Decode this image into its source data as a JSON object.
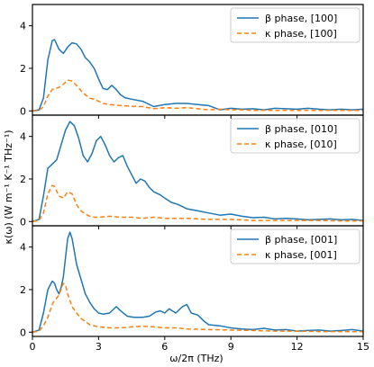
{
  "chart_data": {
    "type": "line",
    "xlabel": "ω/2π (THz)",
    "ylabel": "κ(ω) (W m⁻¹ K⁻¹ THz⁻¹)",
    "xlim": [
      0,
      15
    ],
    "ylim": [
      -0.2,
      5.0
    ],
    "xticks": [
      0,
      3,
      6,
      9,
      12,
      15
    ],
    "yticks": [
      0,
      2,
      4
    ],
    "grid": false,
    "shared_x": true,
    "colors": {
      "beta": "#1f77b4",
      "kappa": "#ff7f0e"
    },
    "panels": [
      {
        "legend_position": "upper-right",
        "series": [
          {
            "name": "β phase, [100]",
            "style": "solid",
            "x": [
              0,
              0.3,
              0.5,
              0.7,
              0.9,
              1.0,
              1.2,
              1.4,
              1.6,
              1.8,
              2.0,
              2.2,
              2.4,
              2.6,
              2.8,
              3.0,
              3.2,
              3.4,
              3.6,
              3.8,
              4.0,
              4.2,
              4.5,
              5.0,
              5.5,
              6.0,
              6.5,
              7.0,
              7.5,
              8.0,
              8.5,
              9.0,
              9.5,
              10.0,
              10.5,
              11.0,
              11.5,
              12.0,
              12.5,
              13.0,
              13.5,
              14.0,
              14.5,
              15.0
            ],
            "y": [
              0,
              0.05,
              0.6,
              2.4,
              3.3,
              3.35,
              2.9,
              2.7,
              3.0,
              3.2,
              3.15,
              2.9,
              2.5,
              2.3,
              2.0,
              1.5,
              1.05,
              1.0,
              1.2,
              1.0,
              0.75,
              0.62,
              0.55,
              0.45,
              0.2,
              0.3,
              0.35,
              0.35,
              0.3,
              0.25,
              0.05,
              0.12,
              0.08,
              0.1,
              0.05,
              0.12,
              0.1,
              0.08,
              0.12,
              0.08,
              0.05,
              0.08,
              0.05,
              0.08
            ]
          },
          {
            "name": "κ phase, [100]",
            "style": "dashed",
            "x": [
              0,
              0.3,
              0.5,
              0.7,
              0.9,
              1.0,
              1.2,
              1.4,
              1.6,
              1.8,
              2.0,
              2.2,
              2.4,
              2.6,
              2.8,
              3.0,
              3.2,
              3.5,
              4.0,
              4.5,
              5.0,
              5.5,
              6.0,
              6.5,
              7.0,
              7.5,
              8.0,
              8.5,
              9.0,
              9.5,
              10.0,
              10.5,
              11.0,
              11.5,
              12.0,
              12.5,
              13.0,
              13.5,
              14.0,
              14.5,
              15.0
            ],
            "y": [
              0,
              0.02,
              0.2,
              0.7,
              1.0,
              1.05,
              1.1,
              1.25,
              1.45,
              1.4,
              1.2,
              0.95,
              0.75,
              0.6,
              0.55,
              0.45,
              0.35,
              0.3,
              0.25,
              0.22,
              0.2,
              0.1,
              0.15,
              0.12,
              0.15,
              0.1,
              0.05,
              0.08,
              0.05,
              0.05,
              0.02,
              0.03,
              0.02,
              0.03,
              0.02,
              0.03,
              0.02,
              0.03,
              0.02,
              0.02,
              0.02
            ]
          }
        ]
      },
      {
        "legend_position": "upper-right",
        "series": [
          {
            "name": "β phase, [010]",
            "style": "solid",
            "x": [
              0,
              0.3,
              0.5,
              0.7,
              0.9,
              1.1,
              1.3,
              1.5,
              1.7,
              1.9,
              2.1,
              2.3,
              2.5,
              2.7,
              2.9,
              3.1,
              3.3,
              3.5,
              3.7,
              3.9,
              4.1,
              4.3,
              4.5,
              4.7,
              4.9,
              5.1,
              5.3,
              5.5,
              5.8,
              6.0,
              6.3,
              6.6,
              7.0,
              7.5,
              8.0,
              8.5,
              9.0,
              9.5,
              10.0,
              10.5,
              11.0,
              11.5,
              12.0,
              12.5,
              13.0,
              13.5,
              14.0,
              14.5,
              15.0
            ],
            "y": [
              0,
              0.1,
              1.2,
              2.5,
              2.7,
              2.9,
              3.6,
              4.3,
              4.7,
              4.5,
              3.9,
              3.1,
              2.8,
              3.2,
              3.8,
              4.0,
              3.6,
              3.1,
              2.8,
              3.0,
              3.1,
              2.6,
              2.2,
              1.8,
              2.0,
              1.9,
              1.6,
              1.4,
              1.25,
              1.1,
              0.9,
              0.8,
              0.6,
              0.5,
              0.4,
              0.3,
              0.35,
              0.25,
              0.18,
              0.2,
              0.12,
              0.15,
              0.12,
              0.08,
              0.1,
              0.12,
              0.08,
              0.1,
              0.05
            ]
          },
          {
            "name": "κ phase, [010]",
            "style": "dashed",
            "x": [
              0,
              0.3,
              0.5,
              0.7,
              0.9,
              1.0,
              1.2,
              1.4,
              1.6,
              1.8,
              2.0,
              2.2,
              2.4,
              2.6,
              2.8,
              3.0,
              3.5,
              4.0,
              4.5,
              5.0,
              5.5,
              6.0,
              7.0,
              8.0,
              9.0,
              10.0,
              11.0,
              12.0,
              13.0,
              14.0,
              15.0
            ],
            "y": [
              0,
              0.05,
              0.4,
              1.3,
              1.7,
              1.65,
              1.2,
              1.1,
              1.4,
              1.3,
              0.8,
              0.5,
              0.35,
              0.25,
              0.2,
              0.2,
              0.25,
              0.2,
              0.2,
              0.15,
              0.2,
              0.15,
              0.15,
              0.1,
              0.1,
              0.05,
              0.05,
              0.05,
              0.05,
              0.03,
              0.03
            ]
          }
        ]
      },
      {
        "legend_position": "upper-right",
        "series": [
          {
            "name": "β phase, [001]",
            "style": "solid",
            "x": [
              0,
              0.3,
              0.5,
              0.7,
              0.9,
              1.0,
              1.1,
              1.2,
              1.3,
              1.4,
              1.5,
              1.6,
              1.7,
              1.8,
              1.9,
              2.0,
              2.2,
              2.4,
              2.6,
              2.8,
              3.0,
              3.2,
              3.5,
              3.8,
              4.0,
              4.3,
              4.6,
              5.0,
              5.3,
              5.6,
              5.8,
              6.0,
              6.2,
              6.5,
              6.8,
              7.0,
              7.2,
              7.5,
              7.8,
              8.0,
              8.5,
              9.0,
              9.5,
              10.0,
              10.5,
              11.0,
              11.5,
              12.0,
              12.5,
              13.0,
              13.5,
              14.0,
              14.5,
              15.0
            ],
            "y": [
              0,
              0.1,
              0.9,
              2.0,
              2.4,
              2.3,
              2.0,
              1.8,
              2.1,
              2.6,
              3.5,
              4.4,
              4.7,
              4.4,
              3.8,
              3.2,
              2.5,
              1.8,
              1.4,
              1.1,
              0.9,
              0.85,
              0.9,
              1.2,
              1.0,
              0.75,
              0.7,
              0.7,
              0.75,
              0.95,
              1.0,
              0.9,
              1.1,
              0.9,
              1.2,
              1.3,
              0.9,
              0.8,
              0.5,
              0.35,
              0.3,
              0.2,
              0.15,
              0.12,
              0.18,
              0.1,
              0.12,
              0.05,
              0.08,
              0.1,
              0.05,
              0.08,
              0.12,
              0.05
            ]
          },
          {
            "name": "κ phase, [001]",
            "style": "dashed",
            "x": [
              0,
              0.3,
              0.5,
              0.7,
              0.9,
              1.0,
              1.1,
              1.2,
              1.3,
              1.4,
              1.5,
              1.6,
              1.8,
              2.0,
              2.2,
              2.4,
              2.6,
              3.0,
              3.5,
              4.0,
              4.5,
              5.0,
              5.5,
              6.0,
              6.5,
              7.0,
              8.0,
              9.0,
              10.0,
              11.0,
              12.0,
              13.0,
              14.0,
              15.0
            ],
            "y": [
              0,
              0.05,
              0.3,
              0.7,
              1.3,
              1.5,
              1.6,
              1.75,
              2.0,
              2.3,
              2.2,
              1.8,
              1.2,
              0.9,
              0.65,
              0.5,
              0.35,
              0.25,
              0.2,
              0.2,
              0.25,
              0.28,
              0.25,
              0.2,
              0.2,
              0.15,
              0.12,
              0.1,
              0.08,
              0.05,
              0.05,
              0.03,
              0.03,
              0.02
            ]
          }
        ]
      }
    ]
  }
}
